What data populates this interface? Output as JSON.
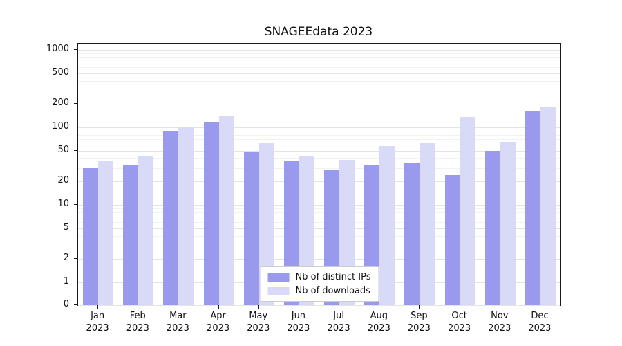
{
  "chart_data": {
    "type": "bar",
    "title": "SNAGEEdata 2023",
    "categories": [
      "Jan 2023",
      "Feb 2023",
      "Mar 2023",
      "Apr 2023",
      "May 2023",
      "Jun 2023",
      "Jul 2023",
      "Aug 2023",
      "Sep 2023",
      "Oct 2023",
      "Nov 2023",
      "Dec 2023"
    ],
    "series": [
      {
        "name": "Nb of distinct IPs",
        "color": "#9999ee",
        "values": [
          30,
          33,
          90,
          115,
          48,
          37,
          28,
          32,
          35,
          24,
          50,
          160
        ]
      },
      {
        "name": "Nb of downloads",
        "color": "#d9d9f8",
        "values": [
          37,
          42,
          100,
          140,
          62,
          42,
          38,
          57,
          62,
          135,
          65,
          180
        ]
      }
    ],
    "yscale": "symlog",
    "yticks": [
      0,
      1,
      2,
      5,
      10,
      20,
      50,
      100,
      200,
      500,
      1000
    ],
    "ylim": [
      0,
      1100
    ],
    "grid": "horizontal",
    "grid_color": "#e4e4e4",
    "legend_position": "lower center"
  }
}
